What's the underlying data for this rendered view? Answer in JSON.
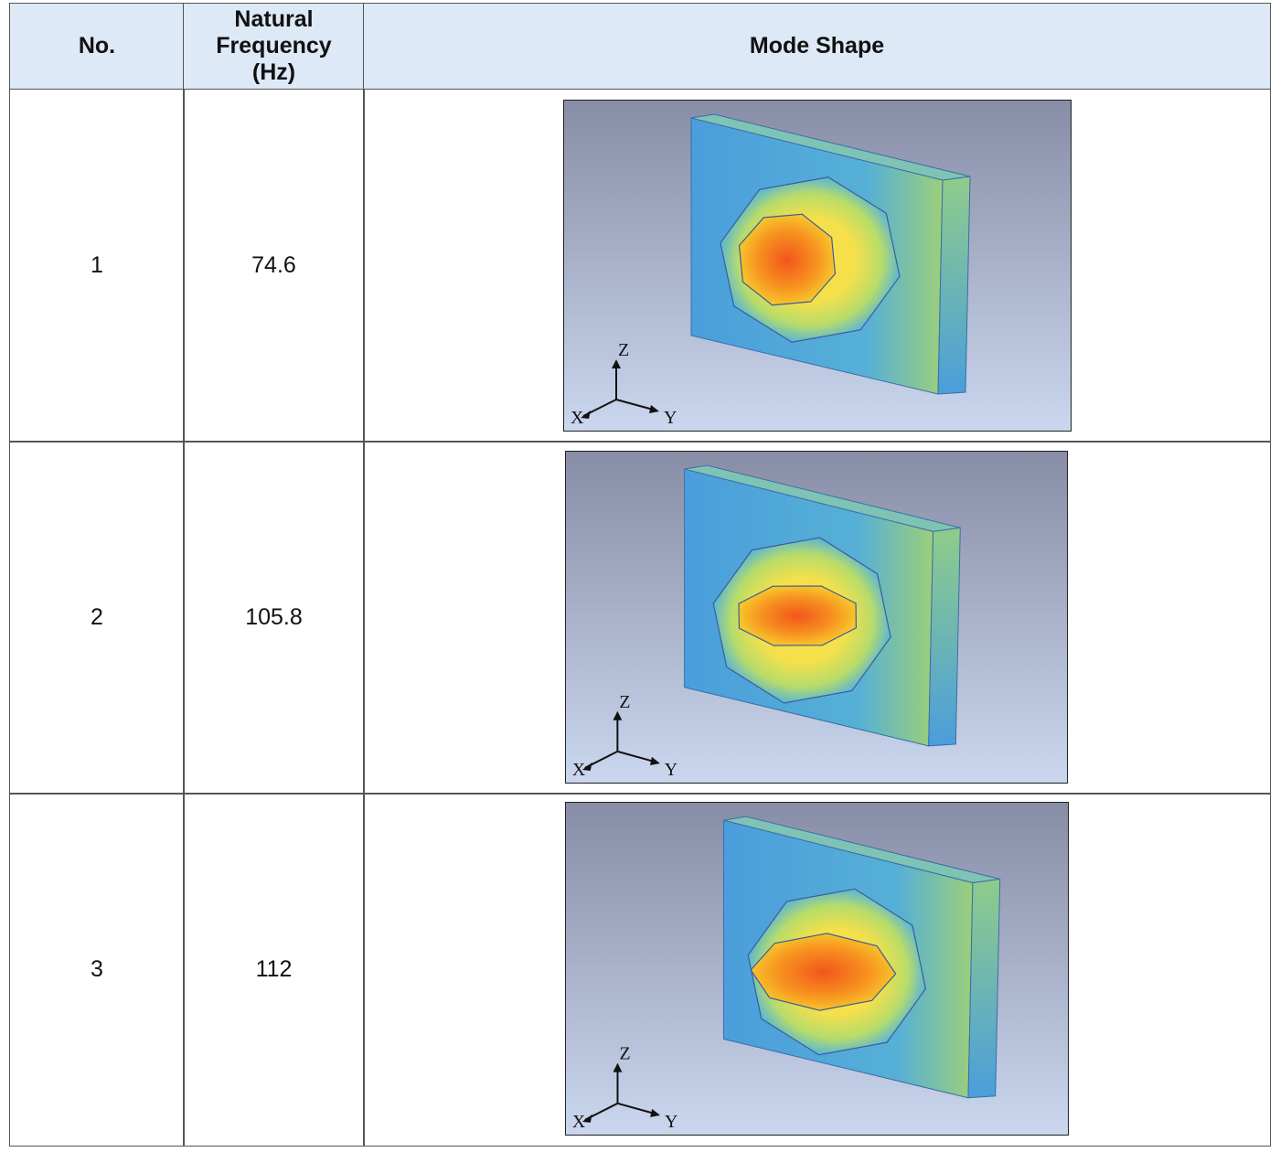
{
  "table": {
    "header": [
      "No.",
      "Natural Frequency (Hz)",
      "Mode Shape"
    ],
    "rows": [
      {
        "no": "1",
        "frequency": "74.6"
      },
      {
        "no": "2",
        "frequency": "105.8"
      },
      {
        "no": "3",
        "frequency": "112"
      }
    ]
  },
  "triad_labels": {
    "x": "X",
    "y": "Y",
    "z": "Z"
  }
}
